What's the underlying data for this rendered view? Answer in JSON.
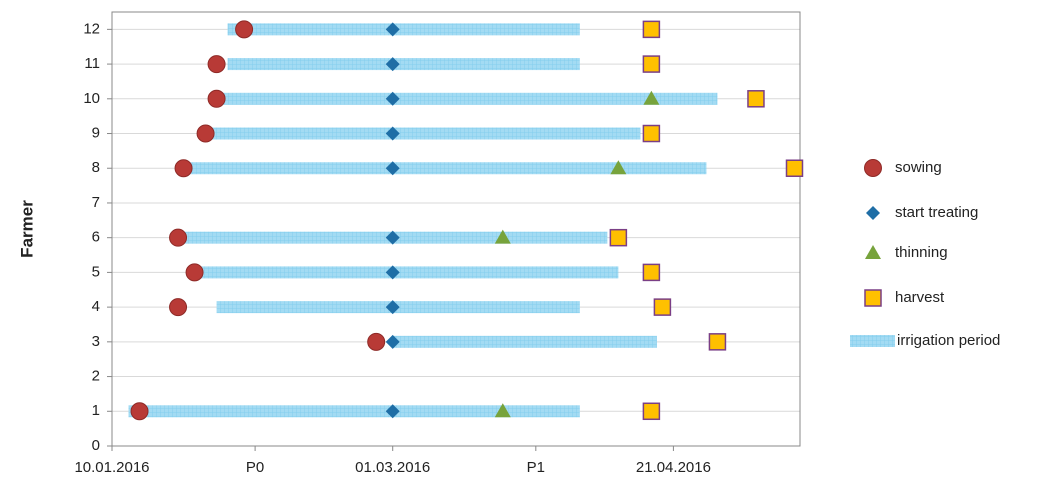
{
  "chart_data": {
    "type": "scatter",
    "y_axis_label": "Farmer",
    "xlim": [
      "2016-01-10",
      "2016-05-14"
    ],
    "xticks": [
      {
        "value": "2016-01-10",
        "label": "10.01.2016"
      },
      {
        "value": "2016-02-05",
        "label": "P0"
      },
      {
        "value": "2016-03-01",
        "label": "01.03.2016"
      },
      {
        "value": "2016-03-27",
        "label": "P1"
      },
      {
        "value": "2016-04-21",
        "label": "21.04.2016"
      }
    ],
    "ylim": [
      0,
      12.5
    ],
    "yticks": [
      0,
      1,
      2,
      3,
      4,
      5,
      6,
      7,
      8,
      9,
      10,
      11,
      12
    ],
    "grid": true,
    "legend": "right",
    "series": [
      {
        "name": "irrigation period",
        "kind": "range",
        "color": "#a3dbf3",
        "y": [
          12,
          11,
          10,
          9,
          8,
          6,
          5,
          4,
          3,
          1
        ],
        "start": [
          "2016-01-31",
          "2016-01-31",
          "2016-01-29",
          "2016-01-27",
          "2016-01-23",
          "2016-01-21",
          "2016-01-25",
          "2016-01-29",
          "2016-03-01",
          "2016-01-13"
        ],
        "end": [
          "2016-04-04",
          "2016-04-04",
          "2016-04-29",
          "2016-04-15",
          "2016-04-27",
          "2016-04-09",
          "2016-04-11",
          "2016-04-04",
          "2016-04-18",
          "2016-04-04"
        ]
      },
      {
        "name": "sowing",
        "marker": "circle",
        "color": "#b83a36",
        "y": [
          12,
          11,
          10,
          9,
          8,
          6,
          5,
          4,
          3,
          1
        ],
        "x": [
          "2016-02-03",
          "2016-01-29",
          "2016-01-29",
          "2016-01-27",
          "2016-01-23",
          "2016-01-22",
          "2016-01-25",
          "2016-01-22",
          "2016-02-27",
          "2016-01-15"
        ]
      },
      {
        "name": "start treating",
        "marker": "diamond",
        "color": "#1f6ea6",
        "y": [
          12,
          11,
          10,
          9,
          8,
          6,
          5,
          4,
          3,
          1
        ],
        "x": [
          "2016-03-01",
          "2016-03-01",
          "2016-03-01",
          "2016-03-01",
          "2016-03-01",
          "2016-03-01",
          "2016-03-01",
          "2016-03-01",
          "2016-03-01",
          "2016-03-01"
        ]
      },
      {
        "name": "thinning",
        "marker": "triangle",
        "color": "#77a33c",
        "y": [
          10,
          8,
          6,
          1
        ],
        "x": [
          "2016-04-17",
          "2016-04-11",
          "2016-03-21",
          "2016-03-21"
        ]
      },
      {
        "name": "harvest",
        "marker": "square",
        "color": "#ffc000",
        "y": [
          12,
          11,
          10,
          9,
          8,
          6,
          5,
          4,
          3,
          1
        ],
        "x": [
          "2016-04-17",
          "2016-04-17",
          "2016-05-06",
          "2016-04-17",
          "2016-05-13",
          "2016-04-11",
          "2016-04-17",
          "2016-04-19",
          "2016-04-29",
          "2016-04-17"
        ]
      }
    ]
  }
}
